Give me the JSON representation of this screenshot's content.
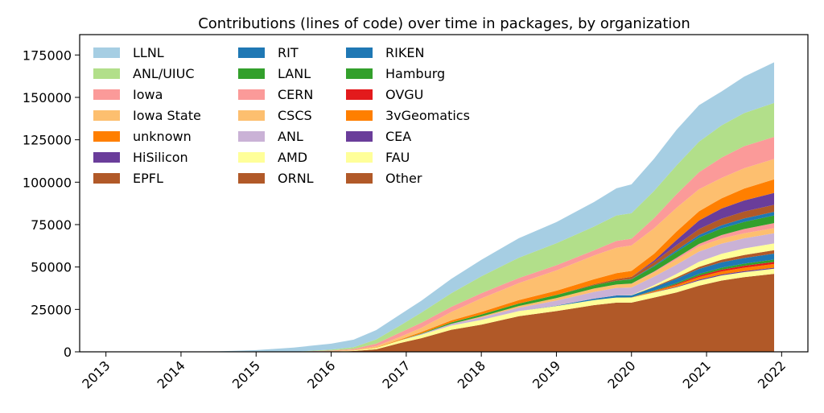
{
  "chart_data": {
    "type": "area",
    "stacked": true,
    "title": "Contributions (lines of code) over time in packages, by organization",
    "xlabel": "",
    "ylabel": "",
    "xlim": [
      2012.65,
      2022.35
    ],
    "ylim": [
      0,
      187000
    ],
    "x_ticks": [
      2013,
      2014,
      2015,
      2016,
      2017,
      2018,
      2019,
      2020,
      2021,
      2022
    ],
    "x_tick_labels": [
      "2013",
      "2014",
      "2015",
      "2016",
      "2017",
      "2018",
      "2019",
      "2020",
      "2021",
      "2022"
    ],
    "y_ticks": [
      0,
      25000,
      50000,
      75000,
      100000,
      125000,
      150000,
      175000
    ],
    "y_tick_labels": [
      "0",
      "25000",
      "50000",
      "75000",
      "100000",
      "125000",
      "150000",
      "175000"
    ],
    "grid": false,
    "legend_placement": "top-left",
    "legend_columns": 3,
    "x": [
      2013.0,
      2014.5,
      2015.0,
      2015.5,
      2016.0,
      2016.3,
      2016.6,
      2016.9,
      2017.2,
      2017.6,
      2018.0,
      2018.5,
      2019.0,
      2019.5,
      2019.8,
      2020.0,
      2020.3,
      2020.6,
      2020.9,
      2021.2,
      2021.5,
      2021.9
    ],
    "series": [
      {
        "name": "Other",
        "color": "#b15928",
        "values": [
          0,
          0,
          0,
          0,
          0,
          500,
          1500,
          5000,
          8000,
          13000,
          16000,
          21000,
          24000,
          27500,
          29000,
          29000,
          32000,
          35000,
          39000,
          42000,
          44000,
          46000
        ]
      },
      {
        "name": "FAU",
        "color": "#ffff99",
        "values": [
          0,
          0,
          0,
          0,
          0,
          200,
          800,
          1500,
          2000,
          2500,
          2800,
          3000,
          3000,
          3000,
          3000,
          3000,
          3000,
          3000,
          3000,
          3000,
          3000,
          3000
        ]
      },
      {
        "name": "CEA",
        "color": "#6a3d9a",
        "values": [
          0,
          0,
          0,
          0,
          0,
          0,
          0,
          0,
          0,
          0,
          0,
          0,
          0,
          0,
          0,
          0,
          200,
          400,
          600,
          600,
          600,
          600
        ]
      },
      {
        "name": "3vGeomatics",
        "color": "#ff7f00",
        "values": [
          0,
          0,
          0,
          0,
          0,
          0,
          0,
          0,
          0,
          0,
          0,
          0,
          0,
          0,
          0,
          100,
          500,
          1000,
          1500,
          1800,
          2000,
          2200
        ]
      },
      {
        "name": "OVGU",
        "color": "#e31a1c",
        "values": [
          0,
          0,
          0,
          0,
          0,
          0,
          0,
          0,
          0,
          0,
          0,
          0,
          0,
          0,
          0,
          0,
          200,
          500,
          800,
          1000,
          1100,
          1200
        ]
      },
      {
        "name": "Hamburg",
        "color": "#33a02c",
        "values": [
          0,
          0,
          0,
          0,
          0,
          0,
          0,
          0,
          0,
          0,
          0,
          0,
          0,
          0,
          0,
          0,
          300,
          700,
          1000,
          1200,
          1300,
          1400
        ]
      },
      {
        "name": "RIKEN",
        "color": "#1f78b4",
        "values": [
          0,
          0,
          0,
          0,
          0,
          0,
          0,
          0,
          0,
          0,
          0,
          0,
          200,
          800,
          1200,
          1200,
          1800,
          2500,
          3000,
          3200,
          3300,
          3500
        ]
      },
      {
        "name": "ORNL",
        "color": "#b15928",
        "values": [
          0,
          0,
          0,
          0,
          0,
          0,
          0,
          0,
          0,
          0,
          0,
          0,
          0,
          0,
          0,
          0,
          300,
          800,
          1200,
          1500,
          1800,
          2000
        ]
      },
      {
        "name": "AMD",
        "color": "#ffff99",
        "values": [
          0,
          0,
          0,
          0,
          0,
          0,
          0,
          0,
          0,
          0,
          0,
          0,
          0,
          0,
          0,
          100,
          1000,
          2000,
          3000,
          3500,
          3800,
          4000
        ]
      },
      {
        "name": "ANL",
        "color": "#cab2d6",
        "values": [
          0,
          0,
          0,
          0,
          0,
          0,
          0,
          0,
          500,
          1000,
          1500,
          2000,
          3000,
          4000,
          4500,
          4500,
          5000,
          5500,
          6000,
          6000,
          6000,
          6000
        ]
      },
      {
        "name": "CSCS",
        "color": "#fdbf6f",
        "values": [
          0,
          0,
          0,
          0,
          0,
          0,
          0,
          0,
          0,
          0,
          500,
          1000,
          1500,
          2000,
          2000,
          2200,
          2500,
          3000,
          3000,
          3000,
          3000,
          3000
        ]
      },
      {
        "name": "CERN",
        "color": "#fb9a99",
        "values": [
          0,
          0,
          0,
          0,
          0,
          0,
          0,
          0,
          0,
          0,
          0,
          0,
          0,
          0,
          0,
          100,
          500,
          1000,
          1500,
          2000,
          2500,
          3000
        ]
      },
      {
        "name": "LANL",
        "color": "#33a02c",
        "values": [
          0,
          0,
          0,
          0,
          0,
          0,
          0,
          100,
          300,
          800,
          1200,
          1500,
          1800,
          2000,
          2200,
          2500,
          3000,
          3500,
          3800,
          4000,
          4200,
          4500
        ]
      },
      {
        "name": "RIT",
        "color": "#1f78b4",
        "values": [
          0,
          0,
          0,
          0,
          0,
          0,
          0,
          0,
          0,
          0,
          0,
          0,
          0,
          0,
          0,
          200,
          500,
          1000,
          1500,
          1800,
          2000,
          2100
        ]
      },
      {
        "name": "EPFL",
        "color": "#b15928",
        "values": [
          0,
          0,
          0,
          0,
          0,
          0,
          0,
          0,
          0,
          0,
          0,
          0,
          0,
          500,
          1000,
          1300,
          2000,
          3000,
          3500,
          3900,
          4100,
          4200
        ]
      },
      {
        "name": "HiSilicon",
        "color": "#6a3d9a",
        "values": [
          0,
          0,
          0,
          0,
          0,
          0,
          0,
          0,
          0,
          0,
          0,
          0,
          0,
          0,
          0,
          0,
          1000,
          3000,
          5000,
          6000,
          6500,
          7000
        ]
      },
      {
        "name": "unknown",
        "color": "#ff7f00",
        "values": [
          0,
          0,
          0,
          0,
          0,
          0,
          200,
          400,
          800,
          1200,
          1500,
          2000,
          2500,
          3000,
          3500,
          3500,
          4000,
          5000,
          5500,
          6000,
          7000,
          8000
        ]
      },
      {
        "name": "Iowa State",
        "color": "#fdbf6f",
        "values": [
          0,
          0,
          0,
          0,
          500,
          500,
          800,
          1500,
          2500,
          5000,
          8000,
          10000,
          12000,
          14000,
          15000,
          15000,
          15000,
          14000,
          13000,
          12000,
          12000,
          12000
        ]
      },
      {
        "name": "Iowa",
        "color": "#fb9a99",
        "values": [
          0,
          0,
          0,
          0,
          300,
          500,
          1500,
          2500,
          3000,
          3000,
          3000,
          3000,
          3000,
          3000,
          4000,
          4000,
          6000,
          8000,
          10000,
          12000,
          13000,
          13000
        ]
      },
      {
        "name": "ANL/UIUC",
        "color": "#b2df8a",
        "values": [
          0,
          0,
          0,
          0,
          500,
          1000,
          2500,
          4000,
          6000,
          8000,
          10000,
          12000,
          13000,
          14000,
          15000,
          15000,
          16000,
          17000,
          18000,
          19000,
          19500,
          20000
        ]
      },
      {
        "name": "LLNL",
        "color": "#a6cee3",
        "values": [
          0,
          300,
          1000,
          2500,
          3500,
          4500,
          5500,
          6500,
          7000,
          8500,
          9700,
          11500,
          12500,
          14500,
          16000,
          17000,
          19000,
          21000,
          21500,
          20000,
          21500,
          24000
        ]
      }
    ],
    "legend_order": [
      [
        "LLNL",
        "ANL/UIUC",
        "Iowa",
        "Iowa State",
        "unknown",
        "HiSilicon",
        "EPFL"
      ],
      [
        "RIT",
        "LANL",
        "CERN",
        "CSCS",
        "ANL",
        "AMD",
        "ORNL"
      ],
      [
        "RIKEN",
        "Hamburg",
        "OVGU",
        "3vGeomatics",
        "CEA",
        "FAU",
        "Other"
      ]
    ]
  }
}
